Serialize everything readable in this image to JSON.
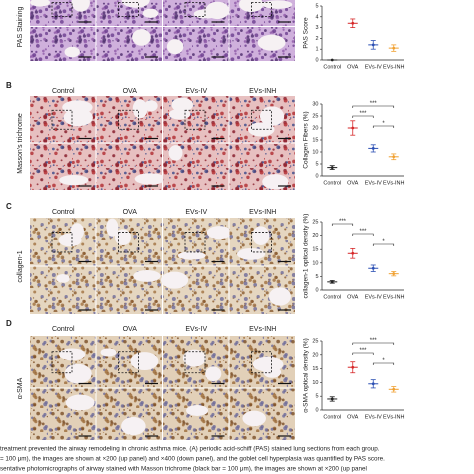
{
  "panels": [
    {
      "row_label": "PAS Staining"
    },
    {
      "letter": "B",
      "row_label": "Masson's trichrome"
    },
    {
      "letter": "C",
      "row_label": "collagen-1"
    },
    {
      "letter": "D",
      "row_label": "α-SMA"
    }
  ],
  "chart_data": [
    {
      "type": "dot",
      "ylabel": "PAS Score",
      "categories": [
        "Control",
        "OVA",
        "EVs-IV",
        "EVs-INH"
      ],
      "values": [
        0,
        3.4,
        1.4,
        1.1
      ],
      "errors": [
        0,
        0.4,
        0.4,
        0.3
      ],
      "colors": [
        "#222222",
        "#d62728",
        "#2b4fb3",
        "#f0a030"
      ],
      "ylim": [
        0,
        5
      ],
      "yticks": [
        0,
        1,
        2,
        3,
        4,
        5
      ],
      "brackets": []
    },
    {
      "type": "dot",
      "ylabel": "Collagen Fibers (%)",
      "categories": [
        "Control",
        "OVA",
        "EVs-IV",
        "EVs-INH"
      ],
      "values": [
        3.5,
        20,
        11.5,
        8
      ],
      "errors": [
        0.8,
        3,
        1.5,
        1.2
      ],
      "colors": [
        "#222222",
        "#d62728",
        "#2b4fb3",
        "#f0a030"
      ],
      "ylim": [
        0,
        30
      ],
      "yticks": [
        0,
        5,
        10,
        15,
        20,
        25,
        30
      ],
      "brackets": [
        {
          "between": [
            "OVA",
            "EVs-INH"
          ],
          "label": "***"
        },
        {
          "between": [
            "OVA",
            "EVs-IV"
          ],
          "label": "***"
        },
        {
          "between": [
            "EVs-IV",
            "EVs-INH"
          ],
          "label": "*"
        }
      ]
    },
    {
      "type": "dot",
      "ylabel": "collagen-1 optical density (%)",
      "categories": [
        "Control",
        "OVA",
        "EVs-IV",
        "EVs-INH"
      ],
      "values": [
        3,
        13.5,
        8,
        6
      ],
      "errors": [
        0.5,
        1.8,
        1.2,
        0.8
      ],
      "colors": [
        "#222222",
        "#d62728",
        "#2b4fb3",
        "#f0a030"
      ],
      "ylim": [
        0,
        25
      ],
      "yticks": [
        0,
        5,
        10,
        15,
        20,
        25
      ],
      "brackets": [
        {
          "between": [
            "Control",
            "OVA"
          ],
          "label": "***"
        },
        {
          "between": [
            "OVA",
            "EVs-IV"
          ],
          "label": "***"
        },
        {
          "between": [
            "EVs-IV",
            "EVs-INH"
          ],
          "label": "*"
        }
      ]
    },
    {
      "type": "dot",
      "ylabel": "α-SMA optical density (%)",
      "categories": [
        "Control",
        "OVA",
        "EVs-IV",
        "EVs-INH"
      ],
      "values": [
        4,
        15.5,
        9.5,
        7.5
      ],
      "errors": [
        0.8,
        2,
        1.5,
        1
      ],
      "colors": [
        "#222222",
        "#d62728",
        "#2b4fb3",
        "#f0a030"
      ],
      "ylim": [
        0,
        25
      ],
      "yticks": [
        0,
        5,
        10,
        15,
        20,
        25
      ],
      "brackets": [
        {
          "between": [
            "OVA",
            "EVs-INH"
          ],
          "label": "***"
        },
        {
          "between": [
            "OVA",
            "EVs-IV"
          ],
          "label": "***"
        },
        {
          "between": [
            "EVs-IV",
            "EVs-INH"
          ],
          "label": "*"
        }
      ]
    }
  ],
  "caption": [
    "treatment prevented the airway remodeling in chronic asthma mice. (A) periodic acid-schiff (PAS) stained lung sections from each group.",
    "= 100 μm), the images are shown at ×200 (up panel) and ×400 (down panel), and the goblet cell hyperplasia was quantified by PAS score.",
    "sentative photomicrographs of airway stained with Masson trichrome (black bar = 100 μm), the images are shown at ×200 (up panel"
  ]
}
